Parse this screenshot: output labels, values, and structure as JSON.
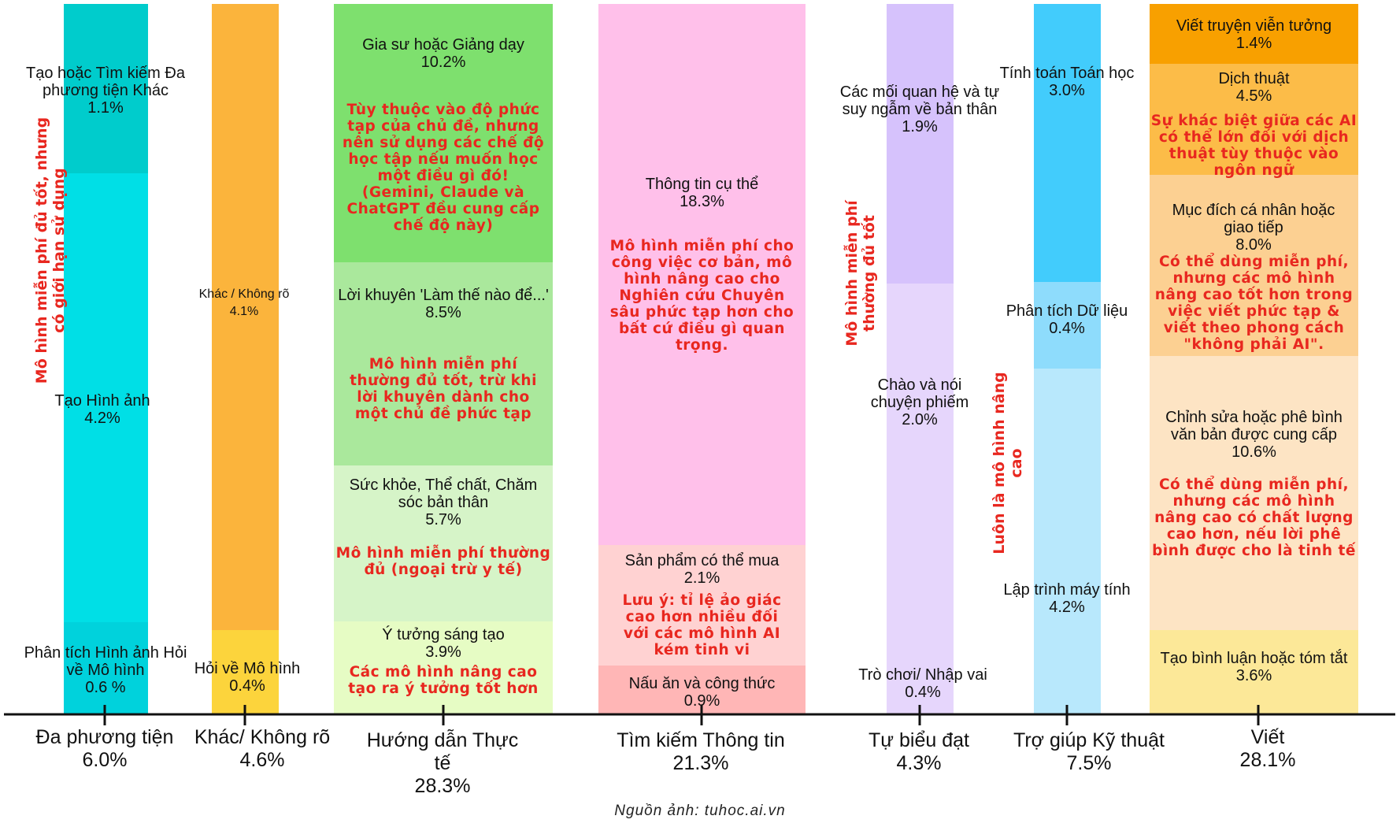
{
  "chart_data": {
    "type": "stacked-bar",
    "categories": [
      {
        "name": "Đa phương tiện",
        "total": "6.0%",
        "segments": [
          {
            "label": "Tạo hoặc Tìm kiếm Đa phương tiện Khác",
            "value": "1.1%",
            "color": "#00cccc"
          },
          {
            "label": "Tạo Hình ảnh",
            "value": "4.2%",
            "color": "#00dfe6"
          },
          {
            "label": "Phân tích Hình ảnh Hỏi về Mô hình",
            "value": "0.6 %",
            "color": "#00d2dc"
          }
        ],
        "vertical_note": "Mô hình miễn phí đủ tốt, nhưng có giới hạn sử dụng"
      },
      {
        "name": "Khác/ Không rõ",
        "total": "4.6%",
        "segments": [
          {
            "label": "Khác / Không rõ",
            "value": "4.1%",
            "color": "#fbb43c"
          },
          {
            "label": "Hỏi về Mô hình",
            "value": "0.4%",
            "color": "#fcd43c"
          }
        ]
      },
      {
        "name": "Hướng dẫn Thực tế",
        "total": "28.3%",
        "segments": [
          {
            "label": "Gia sư hoặc Giảng dạy",
            "value": "10.2%",
            "color": "#7ee06e",
            "note": "Tùy thuộc vào độ phức tạp của chủ đề, nhưng nên sử dụng các chế độ học tập nếu muốn học một điều gì đó! (Gemini, Claude và ChatGPT đều cung cấp chế độ này)"
          },
          {
            "label": "Lời khuyên 'Làm thế nào để...'",
            "value": "8.5%",
            "color": "#aae89c",
            "note": "Mô hình miễn phí thường đủ tốt, trừ khi lời khuyên dành cho một chủ đề phức tạp"
          },
          {
            "label": "Sức khỏe, Thể chất, Chăm sóc bản thân",
            "value": "5.7%",
            "color": "#d6f4c8",
            "note": "Mô hình miễn phí thường đủ (ngoại trừ y tế)"
          },
          {
            "label": "Ý tưởng sáng tạo",
            "value": "3.9%",
            "color": "#e6fcc4",
            "note": "Các mô hình nâng cao tạo ra ý tưởng tốt hơn"
          }
        ]
      },
      {
        "name": "Tìm kiếm Thông tin",
        "total": "21.3%",
        "segments": [
          {
            "label": "Thông tin cụ thể",
            "value": "18.3%",
            "color": "#ffc0ea",
            "note": "Mô hình miễn phí cho công việc cơ bản, mô hình nâng cao cho Nghiên cứu Chuyên sâu phức tạp hơn cho bất cứ điều gì quan trọng."
          },
          {
            "label": "Sản phẩm có thể mua",
            "value": "2.1%",
            "color": "#ffd2d2",
            "note": "Lưu ý: tỉ lệ ảo giác cao hơn nhiều đối với các mô hình AI kém tinh vi"
          },
          {
            "label": "Nấu ăn và công thức",
            "value": "0.9%",
            "color": "#ffb6b6"
          }
        ]
      },
      {
        "name": "Tự biểu đạt",
        "total": "4.3%",
        "segments": [
          {
            "label": "Các mối quan hệ và tự suy ngẫm về bản thân",
            "value": "1.9%",
            "color": "#d6c2fc"
          },
          {
            "label": "Chào và nói chuyện phiếm",
            "value": "2.0%",
            "color": "#e6d6fc"
          },
          {
            "label": "Trò chơi/ Nhập vai",
            "value": "0.4%",
            "color": "#e6d6fc"
          }
        ],
        "vertical_note": "Mô hình miễn phí thường đủ tốt"
      },
      {
        "name": "Trợ giúp Kỹ thuật",
        "total": "7.5%",
        "segments": [
          {
            "label": "Tính toán Toán học",
            "value": "3.0%",
            "color": "#42ccfc"
          },
          {
            "label": "Phân tích Dữ liệu",
            "value": "0.4%",
            "color": "#8edcfc"
          },
          {
            "label": "Lập trình máy tính",
            "value": "4.2%",
            "color": "#b8e8fc"
          }
        ],
        "vertical_note": "Luôn là mô hình nâng cao"
      },
      {
        "name": "Viết",
        "total": "28.1%",
        "segments": [
          {
            "label": "Viết truyện viễn tưởng",
            "value": "1.4%",
            "color": "#f8a000"
          },
          {
            "label": "Dịch thuật",
            "value": "4.5%",
            "color": "#fcbc48",
            "note": "Sự khác biệt giữa các AI có thể lớn đối với dịch thuật tùy thuộc vào ngôn ngữ"
          },
          {
            "label": "Mục đích cá nhân hoặc giao tiếp",
            "value": "8.0%",
            "color": "#fcd092",
            "note": "Có thể dùng miễn phí, nhưng các mô hình nâng cao tốt hơn trong việc viết phức tạp & viết theo phong cách \"không phải AI\"."
          },
          {
            "label": "Chỉnh sửa hoặc phê bình văn bản được cung cấp",
            "value": "10.6%",
            "color": "#fde4c4",
            "note": "Có thể dùng miễn phí, nhưng các mô hình nâng cao có chất lượng cao hơn, nếu lời phê bình được cho là tinh tế"
          },
          {
            "label": "Tạo bình luận hoặc tóm tắt",
            "value": "3.6%",
            "color": "#fce898"
          }
        ]
      }
    ],
    "source": "Nguồn ảnh: tuhoc.ai.vn"
  },
  "colors": {
    "axis": "#111111",
    "note": "#e8271f"
  }
}
